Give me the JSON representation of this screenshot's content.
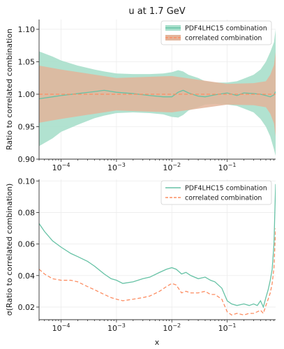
{
  "chart_data": {
    "title": "u at 1.7 GeV",
    "xlabel": "x",
    "xscale": "log",
    "xlim": [
      4e-05,
      0.75
    ],
    "x_tick_labels": [
      "10^-4",
      "10^-3",
      "10^-2",
      "10^-1"
    ],
    "x_tick_values": [
      0.0001,
      0.001,
      0.01,
      0.1
    ],
    "colors": {
      "pdf4lhc": "#66c2a5",
      "correlated": "#fc8d62",
      "pdf4lhc_band": "#a8dfcb",
      "correlated_band": "#e3b49a"
    },
    "panels": [
      {
        "type": "area",
        "ylabel": "Ratio to correlated combination",
        "ylim": [
          0.9,
          1.115
        ],
        "y_ticks": [
          0.9,
          0.95,
          1.0,
          1.05,
          1.1
        ],
        "y_tick_labels": [
          "0.90",
          "0.95",
          "1.00",
          "1.05",
          "1.10"
        ],
        "legend_position": "top-right",
        "grid": true,
        "series": [
          {
            "name": "PDF4LHC15 combination",
            "style": "solid-with-band",
            "x": [
              4e-05,
              7e-05,
              0.0001,
              0.0002,
              0.0004,
              0.0006,
              0.001,
              0.002,
              0.004,
              0.007,
              0.01,
              0.013,
              0.016,
              0.02,
              0.03,
              0.04,
              0.06,
              0.1,
              0.15,
              0.2,
              0.3,
              0.4,
              0.5,
              0.6,
              0.7,
              0.75
            ],
            "center": [
              0.993,
              0.996,
              0.998,
              1.001,
              1.004,
              1.006,
              1.003,
              1.001,
              0.998,
              0.996,
              0.996,
              1.003,
              1.006,
              1.002,
              0.997,
              0.996,
              0.999,
              1.002,
              0.998,
              1.002,
              1.001,
              1.0,
              0.998,
              0.996,
              0.999,
              1.004
            ],
            "upper": [
              1.066,
              1.058,
              1.052,
              1.044,
              1.038,
              1.035,
              1.032,
              1.031,
              1.031,
              1.032,
              1.034,
              1.037,
              1.035,
              1.03,
              1.025,
              1.02,
              1.018,
              1.018,
              1.02,
              1.024,
              1.03,
              1.038,
              1.05,
              1.065,
              1.08,
              1.1
            ],
            "lower": [
              0.92,
              0.932,
              0.942,
              0.953,
              0.963,
              0.967,
              0.971,
              0.972,
              0.971,
              0.969,
              0.965,
              0.964,
              0.968,
              0.975,
              0.98,
              0.984,
              0.985,
              0.984,
              0.982,
              0.978,
              0.972,
              0.962,
              0.95,
              0.935,
              0.915,
              0.905
            ]
          },
          {
            "name": "correlated combination",
            "style": "dashed-with-band",
            "x": [
              4e-05,
              0.0001,
              0.001,
              0.01,
              0.1,
              0.3,
              0.5,
              0.6,
              0.7,
              0.75
            ],
            "center": [
              1.0,
              1.0,
              1.0,
              1.0,
              1.0,
              1.0,
              1.0,
              1.0,
              1.0,
              1.0
            ],
            "upper": [
              1.044,
              1.038,
              1.025,
              1.028,
              1.016,
              1.017,
              1.02,
              1.03,
              1.045,
              1.065
            ],
            "lower": [
              0.956,
              0.962,
              0.975,
              0.972,
              0.984,
              0.983,
              0.98,
              0.97,
              0.955,
              0.935
            ]
          }
        ]
      },
      {
        "type": "line",
        "ylabel": "σ(Ratio to correlated combination)",
        "ylim": [
          0.012,
          0.101
        ],
        "y_ticks": [
          0.02,
          0.04,
          0.06,
          0.08,
          0.1
        ],
        "y_tick_labels": [
          "0.02",
          "0.04",
          "0.06",
          "0.08",
          "0.10"
        ],
        "legend_position": "top-right",
        "grid": true,
        "series": [
          {
            "name": "PDF4LHC15 combination",
            "style": "solid",
            "x": [
              4e-05,
              5e-05,
              7e-05,
              0.0001,
              0.00015,
              0.0002,
              0.0003,
              0.0004,
              0.0006,
              0.0008,
              0.001,
              0.0013,
              0.002,
              0.003,
              0.004,
              0.006,
              0.008,
              0.01,
              0.012,
              0.015,
              0.018,
              0.022,
              0.03,
              0.04,
              0.05,
              0.06,
              0.08,
              0.1,
              0.12,
              0.15,
              0.2,
              0.25,
              0.3,
              0.35,
              0.4,
              0.45,
              0.5,
              0.55,
              0.6,
              0.65,
              0.7,
              0.75
            ],
            "values": [
              0.073,
              0.068,
              0.062,
              0.058,
              0.054,
              0.052,
              0.049,
              0.046,
              0.041,
              0.038,
              0.037,
              0.035,
              0.036,
              0.038,
              0.039,
              0.042,
              0.044,
              0.045,
              0.044,
              0.041,
              0.042,
              0.04,
              0.038,
              0.039,
              0.037,
              0.036,
              0.032,
              0.024,
              0.022,
              0.021,
              0.022,
              0.021,
              0.022,
              0.021,
              0.024,
              0.02,
              0.026,
              0.031,
              0.037,
              0.044,
              0.06,
              0.098
            ]
          },
          {
            "name": "correlated combination",
            "style": "dashed",
            "x": [
              4e-05,
              5e-05,
              7e-05,
              0.0001,
              0.00015,
              0.0002,
              0.0003,
              0.0004,
              0.0006,
              0.0008,
              0.001,
              0.0013,
              0.002,
              0.003,
              0.004,
              0.006,
              0.008,
              0.01,
              0.012,
              0.015,
              0.018,
              0.022,
              0.03,
              0.04,
              0.05,
              0.06,
              0.08,
              0.1,
              0.12,
              0.15,
              0.2,
              0.25,
              0.3,
              0.35,
              0.4,
              0.45,
              0.5,
              0.55,
              0.6,
              0.65,
              0.7,
              0.75
            ],
            "values": [
              0.044,
              0.041,
              0.038,
              0.037,
              0.037,
              0.036,
              0.033,
              0.031,
              0.028,
              0.026,
              0.025,
              0.024,
              0.025,
              0.026,
              0.027,
              0.03,
              0.033,
              0.035,
              0.034,
              0.029,
              0.03,
              0.029,
              0.029,
              0.03,
              0.028,
              0.028,
              0.025,
              0.017,
              0.015,
              0.016,
              0.015,
              0.016,
              0.016,
              0.017,
              0.018,
              0.016,
              0.021,
              0.025,
              0.029,
              0.035,
              0.045,
              0.07
            ]
          }
        ]
      }
    ]
  }
}
